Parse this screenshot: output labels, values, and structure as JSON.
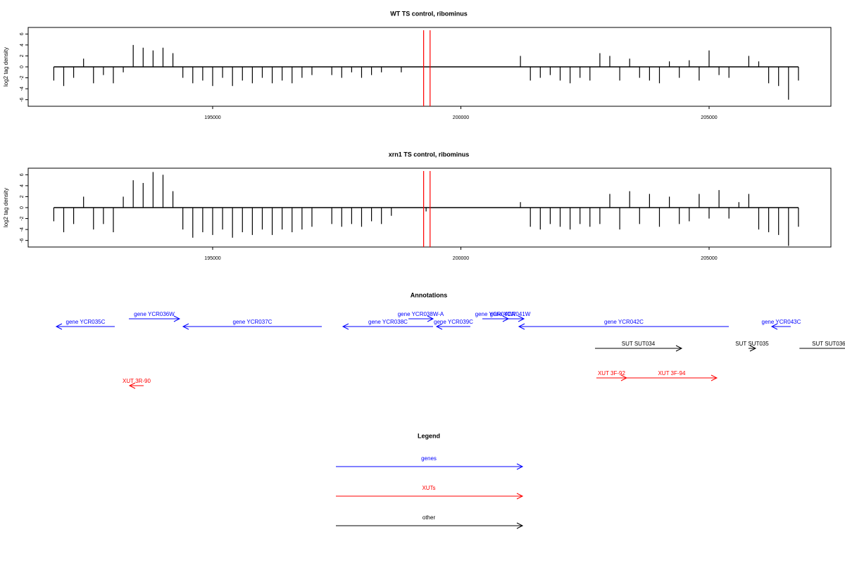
{
  "chart_data": [
    {
      "type": "bar",
      "title": "WT TS control, ribominus",
      "y_label": "log2 tag density",
      "color": "#000000",
      "xlim": [
        191284,
        207454
      ],
      "ylim": [
        -7.2,
        7.2
      ],
      "xticks": [
        195000,
        200000,
        205000
      ],
      "yticks": [
        -6,
        -4,
        -2,
        0,
        2,
        4,
        6
      ],
      "markers": {
        "color": "#ff0000",
        "x": [
          199250,
          199380
        ]
      },
      "x": [
        191800,
        192000,
        192200,
        192400,
        192600,
        192800,
        193000,
        193200,
        193400,
        193600,
        193800,
        194000,
        194200,
        194400,
        194600,
        194800,
        195000,
        195200,
        195400,
        195600,
        195800,
        196000,
        196200,
        196400,
        196600,
        196800,
        197000,
        197400,
        197600,
        197800,
        198000,
        198200,
        198400,
        198800,
        201200,
        201400,
        201600,
        201800,
        202000,
        202200,
        202400,
        202600,
        202800,
        203000,
        203200,
        203400,
        203600,
        203800,
        204000,
        204200,
        204400,
        204600,
        204800,
        205000,
        205200,
        205400,
        205800,
        206000,
        206200,
        206400,
        206600,
        206800
      ],
      "values": [
        -2.5,
        -3.5,
        -2,
        1.5,
        -3,
        -1.5,
        -3,
        -1,
        4,
        3.5,
        3,
        3.5,
        2.5,
        -2,
        -3,
        -2.5,
        -3.5,
        -2,
        -3.5,
        -2.5,
        -3,
        -2,
        -3,
        -2.5,
        -3,
        -2,
        -1.5,
        -1.5,
        -2,
        -1,
        -2,
        -1.5,
        -1,
        -1,
        2,
        -2.5,
        -2,
        -1.5,
        -2.5,
        -3,
        -2,
        -2.5,
        2.5,
        2,
        -2.5,
        1.5,
        -2,
        -2.5,
        -3,
        1,
        -2,
        1.2,
        -2.5,
        3,
        -1.5,
        -2,
        2,
        1,
        -3,
        -3.5,
        -6,
        -2.5
      ]
    },
    {
      "type": "bar",
      "title": "xrn1 TS control, ribominus",
      "y_label": "log2 tag density",
      "color": "#000000",
      "xlim": [
        191284,
        207454
      ],
      "ylim": [
        -7.2,
        7.2
      ],
      "xticks": [
        195000,
        200000,
        205000
      ],
      "yticks": [
        -6,
        -4,
        -2,
        0,
        2,
        4,
        6
      ],
      "markers": {
        "color": "#ff0000",
        "x": [
          199250,
          199380
        ]
      },
      "x": [
        191800,
        192000,
        192200,
        192400,
        192600,
        192800,
        193000,
        193200,
        193400,
        193600,
        193800,
        194000,
        194200,
        194400,
        194600,
        194800,
        195000,
        195200,
        195400,
        195600,
        195800,
        196000,
        196200,
        196400,
        196600,
        196800,
        197000,
        197400,
        197600,
        197800,
        198000,
        198200,
        198400,
        198600,
        199300,
        201200,
        201400,
        201600,
        201800,
        202000,
        202200,
        202400,
        202600,
        202800,
        203000,
        203200,
        203400,
        203600,
        203800,
        204000,
        204200,
        204400,
        204600,
        204800,
        205000,
        205200,
        205400,
        205600,
        205800,
        206000,
        206200,
        206400,
        206600,
        206800
      ],
      "values": [
        -2.5,
        -4.5,
        -3,
        2,
        -4,
        -3,
        -4.5,
        2,
        5,
        4.5,
        6.5,
        6,
        3,
        -4,
        -5.5,
        -4.5,
        -5,
        -4,
        -5.5,
        -4.5,
        -5,
        -4,
        -5,
        -4,
        -4.5,
        -4,
        -3.5,
        -3,
        -3.5,
        -3,
        -3.5,
        -2.5,
        -3,
        -1.5,
        -0.7,
        1,
        -3.5,
        -4,
        -3,
        -3.5,
        -4,
        -3,
        -3.5,
        -3,
        2.5,
        -4,
        3,
        -3,
        2.5,
        -3.5,
        2,
        -3,
        -2.5,
        2.5,
        -2,
        3.2,
        -2,
        1,
        2.5,
        -4,
        -4.5,
        -5,
        -7,
        -3.5
      ]
    }
  ],
  "annotations": {
    "title": "Annotations",
    "genes": [
      {
        "label": "gene YCR035C",
        "start": 193028,
        "end": 191851
      },
      {
        "label": "gene YCR036W",
        "start": 193312,
        "end": 194333
      },
      {
        "label": "gene YCR037C",
        "start": 197199,
        "end": 194404
      },
      {
        "label": "gene YCR038C",
        "start": 199440,
        "end": 197624
      },
      {
        "label": "gene YCR038W-A",
        "start": 198943,
        "end": 199440
      },
      {
        "label": "gene YCR039C",
        "start": 200191,
        "end": 199511
      },
      {
        "label": "gene YCR040W",
        "start": 200433,
        "end": 200957
      },
      {
        "label": "gene YCR041W",
        "start": 200716,
        "end": 201270
      },
      {
        "label": "gene YCR042C",
        "start": 205397,
        "end": 201170
      },
      {
        "label": "gene YCR043C",
        "start": 206645,
        "end": 206262
      }
    ],
    "xuts": [
      {
        "label": "XUT 3R-90",
        "start": 193610,
        "end": 193326
      },
      {
        "label": "XUT 3F-92",
        "start": 202730,
        "end": 203340
      },
      {
        "label": "XUT 3F-94",
        "start": 203340,
        "end": 205156
      }
    ],
    "other": [
      {
        "label": "SUT SUT034",
        "start": 202702,
        "end": 204447
      },
      {
        "label": "SUT SUT035",
        "start": 205794,
        "end": 205936
      },
      {
        "label": "SUT SUT036",
        "start": 206820,
        "end": 208000
      }
    ]
  },
  "legend": {
    "title": "Legend",
    "items": [
      {
        "name": "genes",
        "color": "#0000ff"
      },
      {
        "name": "XUTs",
        "color": "#ff0000"
      },
      {
        "name": "other",
        "color": "#000000"
      }
    ]
  }
}
